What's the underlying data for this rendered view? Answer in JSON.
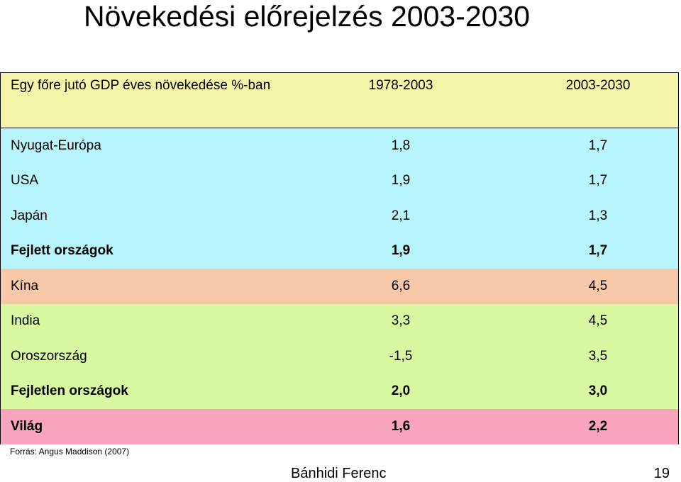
{
  "title": "Növekedési előrejelzés 2003-2030",
  "table": {
    "header": {
      "label": "Egy főre jutó GDP éves növekedése %-ban",
      "col1": "1978-2003",
      "col2": "2003-2030",
      "color": "#f4f4a8"
    },
    "rows": [
      {
        "label": "Nyugat-Európa",
        "v1": "1,8",
        "v2": "1,7",
        "color": "#b8f4fb",
        "bold": false
      },
      {
        "label": "USA",
        "v1": "1,9",
        "v2": "1,7",
        "color": "#b8f4fb",
        "bold": false
      },
      {
        "label": "Japán",
        "v1": "2,1",
        "v2": "1,3",
        "color": "#b8f4fb",
        "bold": false
      },
      {
        "label": "Fejlett országok",
        "v1": "1,9",
        "v2": "1,7",
        "color": "#b8f4fb",
        "bold": true
      },
      {
        "label": "Kína",
        "v1": "6,6",
        "v2": "4,5",
        "color": "#f7c8a8",
        "bold": false
      },
      {
        "label": "India",
        "v1": "3,3",
        "v2": "4,5",
        "color": "#d8f8a0",
        "bold": false
      },
      {
        "label": "Oroszország",
        "v1": "-1,5",
        "v2": "3,5",
        "color": "#d8f8a0",
        "bold": false
      },
      {
        "label": "Fejletlen országok",
        "v1": "2,0",
        "v2": "3,0",
        "color": "#d8f8a0",
        "bold": true
      },
      {
        "label": "Világ",
        "v1": "1,6",
        "v2": "2,2",
        "color": "#f8a4bc",
        "bold": true
      }
    ]
  },
  "source": "Forrás: Angus Maddison (2007)",
  "author": "Bánhidi Ferenc",
  "page_number": "19"
}
